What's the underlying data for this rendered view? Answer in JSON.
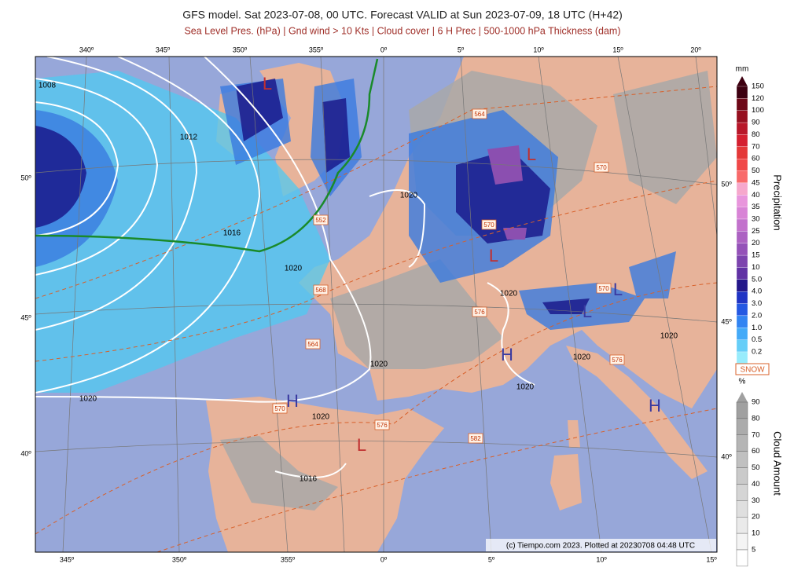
{
  "header": {
    "title": "GFS model. Sat 2023-07-08, 00 UTC. Forecast VALID at Sun 2023-07-09, 18 UTC (H+42)",
    "subtitle": "Sea Level Pres. (hPa) | Gnd wind > 10 Kts | Cloud cover | 6 H Prec | 500-1000 hPa Thickness (dam)"
  },
  "map": {
    "top_lon_labels": [
      "340º",
      "345º",
      "350º",
      "355º",
      "0º",
      "5º",
      "10º",
      "15º",
      "20º"
    ],
    "bottom_lon_labels": [
      "345º",
      "350º",
      "355º",
      "0º",
      "5º",
      "10º",
      "15º"
    ],
    "left_lat_labels": [
      "50º",
      "45º",
      "40º"
    ],
    "right_lat_labels": [
      "50º",
      "45º",
      "40º"
    ],
    "isobar_labels": [
      "1008",
      "1012",
      "1016",
      "1020",
      "1020",
      "1020",
      "1020",
      "1020",
      "1020",
      "1020",
      "1020",
      "1020",
      "1016"
    ],
    "thickness_labels": [
      "564",
      "570",
      "552",
      "570",
      "570",
      "568",
      "576",
      "564",
      "576",
      "570",
      "576",
      "582"
    ],
    "pressure_centers": [
      "L",
      "L",
      "L",
      "L",
      "H",
      "H",
      "H",
      "L",
      "L"
    ],
    "credit": "(c) Tiempo.com 2023. Plotted at 20230708 04:48 UTC"
  },
  "precip_legend": {
    "unit": "mm",
    "title": "Precipitation",
    "labels": [
      "150",
      "120",
      "100",
      "90",
      "80",
      "70",
      "60",
      "50",
      "45",
      "40",
      "35",
      "30",
      "25",
      "20",
      "15",
      "10",
      "5.0",
      "4.0",
      "3.0",
      "2.0",
      "1.0",
      "0.5",
      "0.2"
    ]
  },
  "cloud_legend": {
    "snow": "SNOW",
    "unit": "%",
    "title": "Cloud Amount",
    "labels": [
      "90",
      "80",
      "70",
      "60",
      "50",
      "40",
      "30",
      "20",
      "10",
      "5"
    ]
  }
}
